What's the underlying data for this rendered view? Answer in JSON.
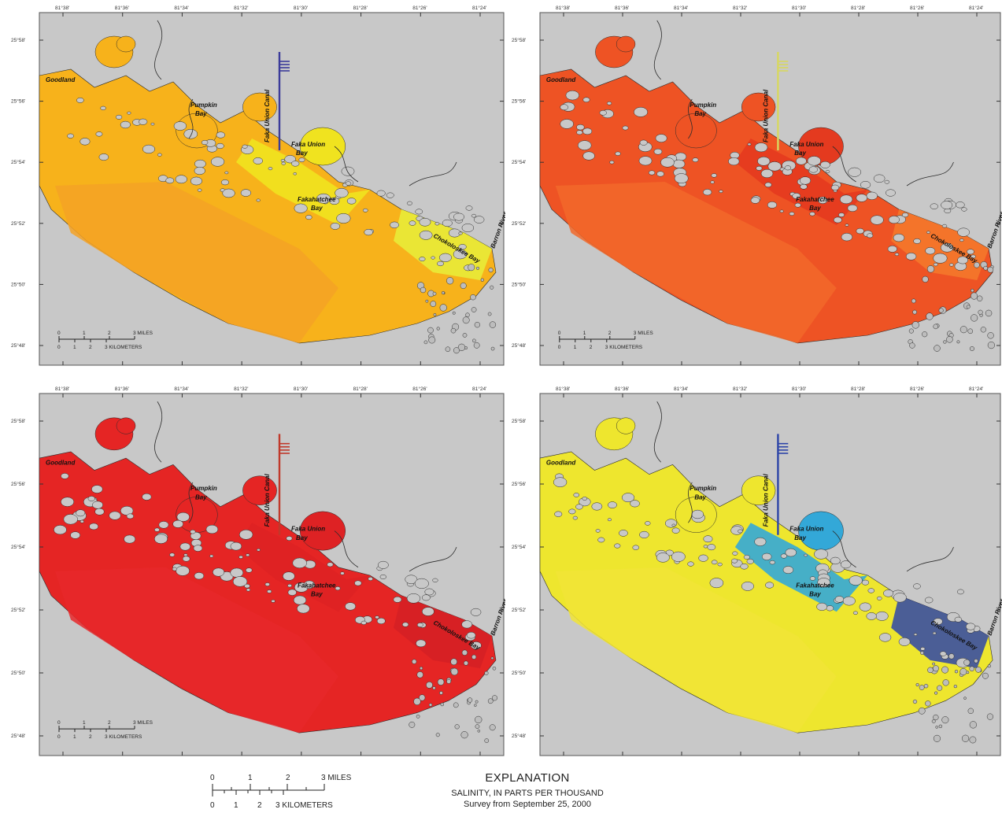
{
  "panels": [
    {
      "id": "top-left",
      "fill_main": "#f7b21b",
      "fill_offshore": "#f4a224",
      "fill_inner": "#f0e31f",
      "fill_east": "#e8ef3a",
      "canal_color": "#3b3b9a"
    },
    {
      "id": "top-right",
      "fill_main": "#ee5324",
      "fill_offshore": "#f2692a",
      "fill_inner": "#e43a1f",
      "fill_east": "#f47a2c",
      "canal_color": "#d8d860"
    },
    {
      "id": "bottom-left",
      "fill_main": "#e52524",
      "fill_offshore": "#e8282a",
      "fill_inner": "#de2224",
      "fill_east": "#d52024",
      "canal_color": "#c0392b"
    },
    {
      "id": "bottom-right",
      "fill_main": "#eee62e",
      "fill_offshore": "#f1e436",
      "fill_inner": "#33a8d8",
      "fill_east": "#2e45a8",
      "canal_color": "#2e45a8"
    }
  ],
  "top_ticks": [
    "81°38'",
    "81°36'",
    "81°34'",
    "81°32'",
    "81°30'",
    "81°28'",
    "81°26'",
    "81°24'"
  ],
  "left_ticks": [
    "25°58'",
    "25°56'",
    "25°54'",
    "25°52'",
    "25°50'",
    "25°48'"
  ],
  "place_names": {
    "goodland": "Goodland",
    "pumpkin_bay": [
      "Pumpkin",
      "Bay"
    ],
    "faka_union_canal": "Faka Union Canal",
    "faka_union_bay": [
      "Faka Union",
      "Bay"
    ],
    "fakahatchee_bay": [
      "Fakahatchee",
      "Bay"
    ],
    "chokoloskee_bay": "Chokoloskee Bay",
    "barron_river": "Barron River"
  },
  "scale_bar": {
    "miles": [
      "0",
      "1",
      "2",
      "3 MILES"
    ],
    "km": [
      "0",
      "1",
      "2",
      "3 KILOMETERS"
    ]
  },
  "explanation": {
    "heading": "EXPLANATION",
    "subheading": "SALINITY, IN PARTS PER THOUSAND",
    "survey": "Survey from September 25, 2000"
  },
  "colors": {
    "land": "#c8c8c8",
    "border": "#555555",
    "coast": "#2b2b2b"
  }
}
